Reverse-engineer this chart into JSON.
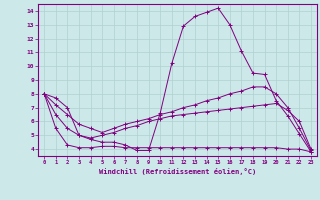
{
  "xlabel": "Windchill (Refroidissement éolien,°C)",
  "background_color": "#cce8e8",
  "grid_color": "#b0d0d0",
  "line_color": "#800080",
  "xlim": [
    -0.5,
    23.5
  ],
  "ylim": [
    3.5,
    14.5
  ],
  "xticks": [
    0,
    1,
    2,
    3,
    4,
    5,
    6,
    7,
    8,
    9,
    10,
    11,
    12,
    13,
    14,
    15,
    16,
    17,
    18,
    19,
    20,
    21,
    22,
    23
  ],
  "yticks": [
    4,
    5,
    6,
    7,
    8,
    9,
    10,
    11,
    12,
    13,
    14
  ],
  "series": [
    [
      8.0,
      7.7,
      7.0,
      5.0,
      4.7,
      4.5,
      4.5,
      4.3,
      3.9,
      3.9,
      6.6,
      10.2,
      12.9,
      13.6,
      13.9,
      14.2,
      13.0,
      11.1,
      9.5,
      9.4,
      7.5,
      6.4,
      5.1,
      3.8
    ],
    [
      8.0,
      7.2,
      6.5,
      5.8,
      5.5,
      5.2,
      5.5,
      5.8,
      6.0,
      6.2,
      6.5,
      6.7,
      7.0,
      7.2,
      7.5,
      7.7,
      8.0,
      8.2,
      8.5,
      8.5,
      8.0,
      7.0,
      5.5,
      3.9
    ],
    [
      8.0,
      6.5,
      5.5,
      5.0,
      4.8,
      5.0,
      5.2,
      5.5,
      5.7,
      6.0,
      6.2,
      6.4,
      6.5,
      6.6,
      6.7,
      6.8,
      6.9,
      7.0,
      7.1,
      7.2,
      7.3,
      6.8,
      6.0,
      4.0
    ],
    [
      8.0,
      5.5,
      4.3,
      4.1,
      4.1,
      4.2,
      4.2,
      4.1,
      4.1,
      4.1,
      4.1,
      4.1,
      4.1,
      4.1,
      4.1,
      4.1,
      4.1,
      4.1,
      4.1,
      4.1,
      4.1,
      4.0,
      4.0,
      3.8
    ]
  ]
}
